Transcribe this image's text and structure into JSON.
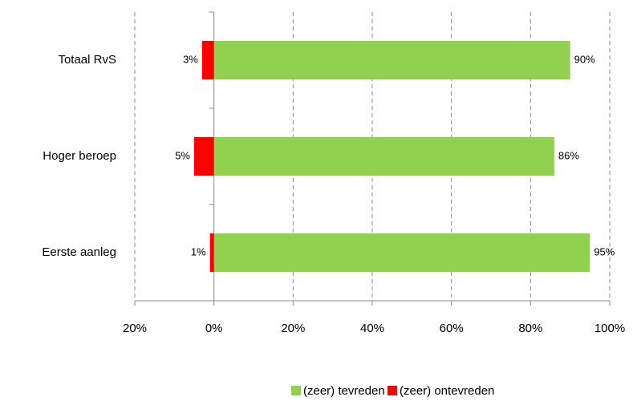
{
  "chart_data": {
    "type": "bar",
    "orientation": "horizontal",
    "categories": [
      "Totaal RvS",
      "Hoger beroep",
      "Eerste aanleg"
    ],
    "series": [
      {
        "name": "(zeer) tevreden",
        "color": "#92d050",
        "values": [
          90,
          86,
          95
        ],
        "value_labels": [
          "90%",
          "86%",
          "95%"
        ]
      },
      {
        "name": "(zeer) ontevreden",
        "color": "#ff0000",
        "values": [
          -3,
          -5,
          -1
        ],
        "value_labels": [
          "3%",
          "5%",
          "1%"
        ]
      }
    ],
    "xlim": [
      -20,
      100
    ],
    "xticks": [
      {
        "value": -20,
        "label": "20%"
      },
      {
        "value": 0,
        "label": "0%"
      },
      {
        "value": 20,
        "label": "20%"
      },
      {
        "value": 40,
        "label": "40%"
      },
      {
        "value": 60,
        "label": "60%"
      },
      {
        "value": 80,
        "label": "80%"
      },
      {
        "value": 100,
        "label": "100%"
      }
    ],
    "grid": true,
    "legend": "bottom"
  }
}
